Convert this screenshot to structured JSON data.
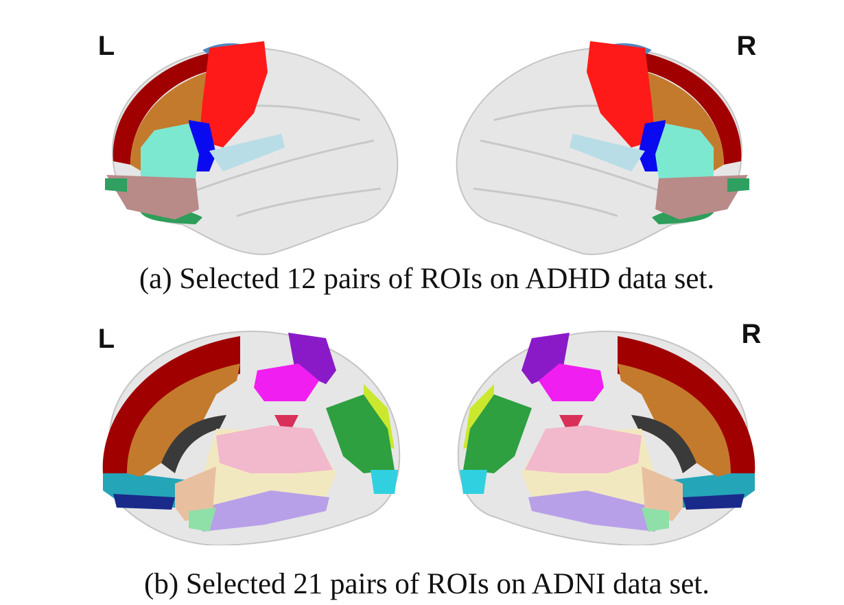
{
  "panels": [
    {
      "left_label": "L",
      "right_label": "R",
      "caption": "(a) Selected 12 pairs of ROIs on ADHD data set."
    },
    {
      "left_label": "L",
      "right_label": "R",
      "caption": "(b) Selected 21 pairs of ROIs on ADNI data set."
    }
  ]
}
